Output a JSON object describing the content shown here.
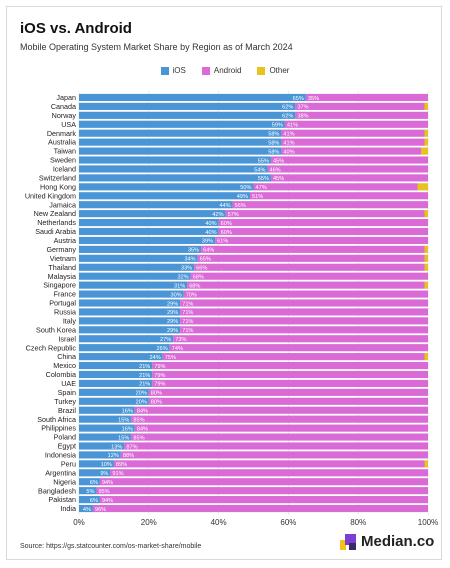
{
  "title": "iOS vs. Android",
  "subtitle": "Mobile Operating System Market Share by Region as of March 2024",
  "source": "Source: https://gs.statcounter.com/os-market-share/mobile",
  "brand": "Median.co",
  "colors": {
    "ios": "#4a95d6",
    "android": "#da6bd6",
    "other": "#e8c21f",
    "brand_accent": "#7b3fd1",
    "brand_yellow": "#f2c318",
    "brand_dark": "#3b2a6b"
  },
  "chart_data": {
    "type": "bar",
    "orientation": "horizontal",
    "stacked": true,
    "categories": [
      "Japan",
      "Canada",
      "Norway",
      "USA",
      "Denmark",
      "Australia",
      "Taiwan",
      "Sweden",
      "Iceland",
      "Switzerland",
      "Hong Kong",
      "United Kingdom",
      "Jamaica",
      "New Zealand",
      "Netherlands",
      "Saudi Arabia",
      "Austria",
      "Germany",
      "Vietnam",
      "Thailand",
      "Malaysia",
      "Singapore",
      "France",
      "Portugal",
      "Russia",
      "Italy",
      "South Korea",
      "Israel",
      "Czech Republic",
      "China",
      "Mexico",
      "Colombia",
      "UAE",
      "Spain",
      "Turkey",
      "Brazil",
      "South Africa",
      "Philippines",
      "Poland",
      "Egypt",
      "Indonesia",
      "Peru",
      "Argentina",
      "Nigeria",
      "Bangladesh",
      "Pakistan",
      "India"
    ],
    "series": [
      {
        "name": "iOS",
        "values": [
          65,
          62,
          62,
          59,
          58,
          58,
          58,
          55,
          54,
          55,
          50,
          49,
          44,
          42,
          40,
          40,
          39,
          35,
          34,
          33,
          32,
          31,
          30,
          29,
          29,
          29,
          29,
          27,
          26,
          24,
          21,
          21,
          21,
          20,
          20,
          16,
          15,
          16,
          15,
          13,
          12,
          10,
          9,
          6,
          5,
          6,
          4
        ]
      },
      {
        "name": "Android",
        "values": [
          35,
          37,
          38,
          41,
          41,
          41,
          40,
          45,
          46,
          45,
          47,
          51,
          56,
          57,
          60,
          60,
          61,
          64,
          65,
          66,
          68,
          68,
          70,
          71,
          71,
          71,
          71,
          73,
          74,
          75,
          79,
          79,
          79,
          80,
          80,
          84,
          85,
          84,
          85,
          87,
          88,
          89,
          91,
          94,
          95,
          94,
          96
        ]
      },
      {
        "name": "Other",
        "values": [
          0,
          1,
          0,
          0,
          1,
          1,
          2,
          0,
          0,
          0,
          3,
          0,
          0,
          1,
          0,
          0,
          0,
          1,
          1,
          1,
          0,
          1,
          0,
          0,
          0,
          0,
          0,
          0,
          0,
          1,
          0,
          0,
          0,
          0,
          0,
          0,
          0,
          0,
          0,
          0,
          0,
          1,
          0,
          0,
          0,
          0,
          0
        ]
      }
    ],
    "data_labels": {
      "ios": [
        "65%",
        "62%",
        "62%",
        "59%",
        "58%",
        "58%",
        "58%",
        "55%",
        "54%",
        "55%",
        "50%",
        "49%",
        "44%",
        "42%",
        "40%",
        "40%",
        "39%",
        "35%",
        "34%",
        "33%",
        "32%",
        "31%",
        "30%",
        "29%",
        "29%",
        "29%",
        "29%",
        "27%",
        "26%",
        "24%",
        "21%",
        "21%",
        "21%",
        "20%",
        "20%",
        "16%",
        "15%",
        "16%",
        "15%",
        "13%",
        "12%",
        "10%",
        "9%",
        "6%",
        "5%",
        "6%",
        "4%"
      ],
      "android": [
        "35%",
        "37%",
        "38%",
        "41%",
        "41%",
        "41%",
        "40%",
        "45%",
        "46%",
        "45%",
        "47%",
        "51%",
        "56%",
        "57%",
        "60%",
        "60%",
        "61%",
        "64%",
        "65%",
        "66%",
        "68%",
        "68%",
        "70%",
        "71%",
        "71%",
        "71%",
        "71%",
        "73%",
        "74%",
        "75%",
        "79%",
        "79%",
        "79%",
        "80%",
        "80%",
        "84%",
        "85%",
        "84%",
        "85%",
        "87%",
        "88%",
        "89%",
        "91%",
        "94%",
        "95%",
        "94%",
        "96%"
      ]
    },
    "xlim": [
      0,
      100
    ],
    "xticks": [
      "0%",
      "20%",
      "40%",
      "60%",
      "80%",
      "100%"
    ],
    "legend": [
      "iOS",
      "Android",
      "Other"
    ],
    "legend_position": "top-center",
    "grid": true
  }
}
